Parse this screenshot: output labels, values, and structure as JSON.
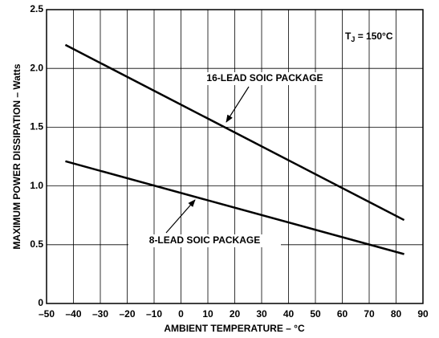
{
  "chart_data": {
    "type": "line",
    "x_label": "AMBIENT TEMPERATURE – °C",
    "y_label": "MAXIMUM POWER DISSIPATION – Watts",
    "annotation": {
      "main": "T",
      "sub": "J",
      "rest": " = 150°C"
    },
    "series": [
      {
        "name": "16-LEAD SOIC PACKAGE",
        "color": "#000000",
        "x": [
          -43,
          83
        ],
        "values": [
          2.2,
          0.71
        ]
      },
      {
        "name": "8-LEAD SOIC PACKAGE",
        "color": "#000000",
        "x": [
          -43,
          83
        ],
        "values": [
          1.21,
          0.42
        ]
      }
    ],
    "xlim": [
      -50,
      90
    ],
    "xticks": [
      {
        "value": -50,
        "label": "–50"
      },
      {
        "value": -40,
        "label": "–40"
      },
      {
        "value": -30,
        "label": "–30"
      },
      {
        "value": -20,
        "label": "–20"
      },
      {
        "value": -10,
        "label": "–10"
      },
      0,
      10,
      20,
      30,
      40,
      50,
      60,
      70,
      80,
      90
    ],
    "ylim": [
      0,
      2.5
    ],
    "yticks": [
      0,
      0.5,
      {
        "value": 1,
        "label": "1.0"
      },
      1.5,
      {
        "value": 2,
        "label": "2.0"
      },
      2.5
    ],
    "grid": true
  }
}
